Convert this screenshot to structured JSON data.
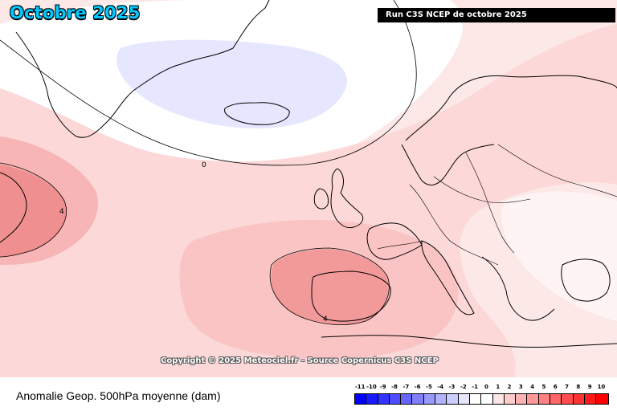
{
  "header": {
    "title": "Octobre 2025",
    "run_label": "Run C3S NCEP de octobre 2025"
  },
  "map": {
    "copyright": "Copyright © 2025 Meteociel.fr - Source Copernicus C3S NCEP",
    "contour_labels": [
      "0",
      "4",
      "4"
    ]
  },
  "footer": {
    "caption": "Anomalie Geop. 500hPa moyenne (dam)"
  },
  "legend": {
    "ticks": [
      "-11",
      "-10",
      "-9",
      "-8",
      "-7",
      "-6",
      "-5",
      "-4",
      "-3",
      "-2",
      "-1",
      "0",
      "1",
      "2",
      "3",
      "4",
      "5",
      "6",
      "7",
      "8",
      "9",
      "10"
    ],
    "colors": [
      "#0000ff",
      "#1a1aff",
      "#3333ff",
      "#4d4dff",
      "#6666ff",
      "#8080ff",
      "#9999ff",
      "#b3b3ff",
      "#ccccff",
      "#e6e6ff",
      "#ffffff",
      "#ffffff",
      "#ffe6e6",
      "#ffcccc",
      "#ffb3b3",
      "#ff9999",
      "#ff8080",
      "#ff6666",
      "#ff4d4d",
      "#ff3333",
      "#ff1a1a",
      "#ff0000"
    ]
  }
}
